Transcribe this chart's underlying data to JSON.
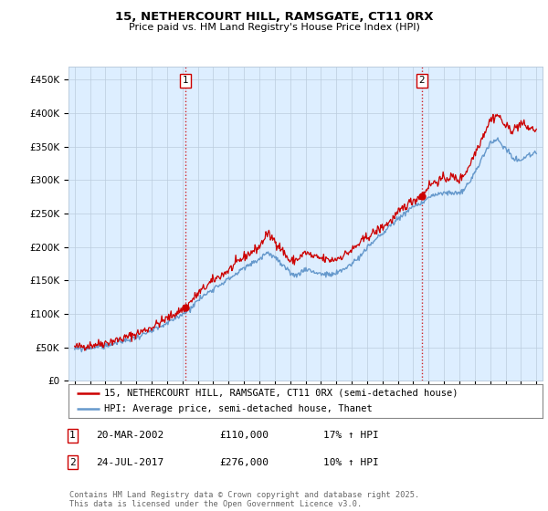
{
  "title_line1": "15, NETHERCOURT HILL, RAMSGATE, CT11 0RX",
  "title_line2": "Price paid vs. HM Land Registry's House Price Index (HPI)",
  "ylim": [
    0,
    470000
  ],
  "yticks": [
    0,
    50000,
    100000,
    150000,
    200000,
    250000,
    300000,
    350000,
    400000,
    450000
  ],
  "ytick_labels": [
    "£0",
    "£50K",
    "£100K",
    "£150K",
    "£200K",
    "£250K",
    "£300K",
    "£350K",
    "£400K",
    "£450K"
  ],
  "sale1_date": 2002.22,
  "sale1_price": 110000,
  "sale2_date": 2017.56,
  "sale2_price": 276000,
  "red_color": "#cc0000",
  "blue_color": "#6699cc",
  "chart_bg_color": "#ddeeff",
  "legend_label_red": "15, NETHERCOURT HILL, RAMSGATE, CT11 0RX (semi-detached house)",
  "legend_label_blue": "HPI: Average price, semi-detached house, Thanet",
  "annotation1_date": "20-MAR-2002",
  "annotation1_price": "£110,000",
  "annotation1_hpi": "17% ↑ HPI",
  "annotation2_date": "24-JUL-2017",
  "annotation2_price": "£276,000",
  "annotation2_hpi": "10% ↑ HPI",
  "footnote": "Contains HM Land Registry data © Crown copyright and database right 2025.\nThis data is licensed under the Open Government Licence v3.0.",
  "background_color": "#ffffff",
  "grid_color": "#bbccdd"
}
